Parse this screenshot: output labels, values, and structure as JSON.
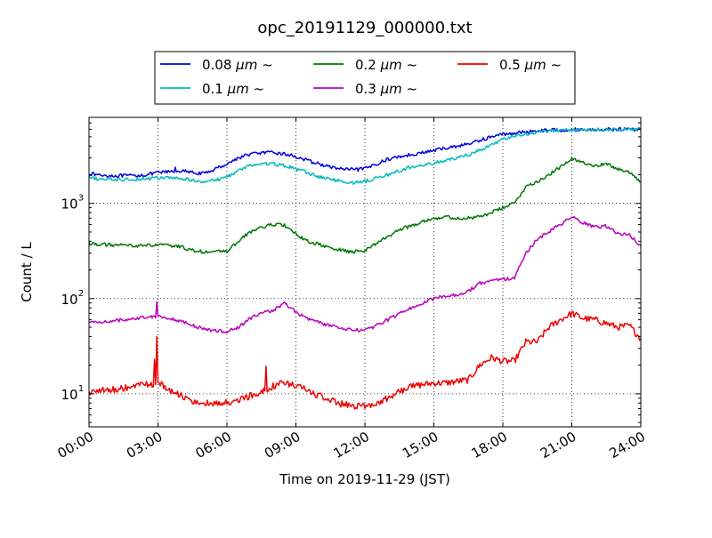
{
  "chart_data": {
    "type": "line",
    "title": "opc_20191129_000000.txt",
    "xlabel": "Time on 2019-11-29 (JST)",
    "ylabel": "Count / L",
    "xlim": [
      "00:00",
      "24:00"
    ],
    "ylim": [
      4.5,
      8000
    ],
    "yscale": "log",
    "grid": true,
    "legend_position": "top-center",
    "x_ticks": [
      "00:00",
      "03:00",
      "06:00",
      "09:00",
      "12:00",
      "15:00",
      "18:00",
      "21:00",
      "24:00"
    ],
    "y_ticks": [
      {
        "value": 10,
        "label": "10",
        "exp": "1"
      },
      {
        "value": 100,
        "label": "10",
        "exp": "2"
      },
      {
        "value": 1000,
        "label": "10",
        "exp": "3"
      }
    ],
    "x_hours": [
      0,
      0.5,
      1,
      1.5,
      2,
      2.5,
      3,
      3.5,
      4,
      4.5,
      5,
      5.5,
      6,
      6.5,
      7,
      7.5,
      8,
      8.5,
      9,
      9.5,
      10,
      10.5,
      11,
      11.5,
      12,
      12.5,
      13,
      13.5,
      14,
      14.5,
      15,
      15.5,
      16,
      16.5,
      17,
      17.5,
      18,
      18.5,
      19,
      19.5,
      20,
      20.5,
      21,
      21.5,
      22,
      22.5,
      23,
      23.5,
      24
    ],
    "series": [
      {
        "name": "0.08",
        "unit": "μm",
        "suffix": "~",
        "color": "#0000dd",
        "values": [
          2050,
          1980,
          1950,
          1950,
          1950,
          2000,
          2100,
          2150,
          2200,
          2100,
          2050,
          2300,
          2600,
          3000,
          3300,
          3400,
          3400,
          3300,
          3100,
          2800,
          2600,
          2400,
          2300,
          2250,
          2300,
          2600,
          2900,
          3100,
          3250,
          3400,
          3600,
          3800,
          4000,
          4200,
          4600,
          5000,
          5300,
          5500,
          5600,
          5800,
          5900,
          5900,
          5950,
          5950,
          5950,
          6000,
          6000,
          6000,
          6000
        ]
      },
      {
        "name": "0.1",
        "unit": "μm",
        "suffix": "~",
        "color": "#00bbbb",
        "values": [
          1850,
          1800,
          1780,
          1780,
          1800,
          1820,
          1850,
          1850,
          1820,
          1750,
          1700,
          1750,
          1900,
          2200,
          2500,
          2600,
          2600,
          2500,
          2300,
          2100,
          1900,
          1800,
          1700,
          1650,
          1700,
          1850,
          2000,
          2200,
          2400,
          2500,
          2650,
          2800,
          3000,
          3250,
          3600,
          4100,
          4700,
          5100,
          5300,
          5600,
          5800,
          5850,
          5900,
          5900,
          5900,
          5950,
          5950,
          5950,
          5950
        ]
      },
      {
        "name": "0.2",
        "unit": "μm",
        "suffix": "~",
        "color": "#007700",
        "values": [
          380,
          370,
          365,
          362,
          360,
          362,
          365,
          360,
          350,
          320,
          310,
          310,
          315,
          400,
          500,
          560,
          600,
          590,
          470,
          400,
          370,
          340,
          320,
          310,
          320,
          380,
          450,
          530,
          580,
          650,
          700,
          720,
          700,
          700,
          720,
          800,
          900,
          1000,
          1500,
          1700,
          2000,
          2400,
          2900,
          2700,
          2500,
          2600,
          2300,
          2100,
          1700
        ]
      },
      {
        "name": "0.3",
        "unit": "μm",
        "suffix": "~",
        "color": "#bb00bb",
        "values": [
          56,
          57,
          58,
          60,
          62,
          64,
          66,
          62,
          58,
          52,
          48,
          46,
          45,
          50,
          62,
          70,
          75,
          90,
          72,
          62,
          56,
          52,
          48,
          47,
          46,
          52,
          60,
          70,
          80,
          90,
          100,
          105,
          110,
          120,
          145,
          155,
          160,
          165,
          300,
          420,
          500,
          600,
          720,
          620,
          560,
          580,
          480,
          470,
          350
        ]
      },
      {
        "name": "0.5",
        "unit": "μm",
        "suffix": "~",
        "color": "#ee0000",
        "values": [
          10.5,
          10.8,
          11,
          11.5,
          12,
          12.5,
          13,
          11,
          9.5,
          8.5,
          8,
          7.8,
          8,
          8.5,
          9.5,
          10.5,
          12,
          13,
          12,
          11,
          9.5,
          8.5,
          7.8,
          7.5,
          7.5,
          8,
          9,
          10.5,
          12,
          12.5,
          13,
          13,
          13.5,
          14,
          20,
          24,
          22,
          22,
          35,
          35,
          50,
          60,
          70,
          62,
          60,
          55,
          50,
          52,
          38
        ]
      }
    ],
    "spikes": [
      {
        "series": 4,
        "x": 2.85,
        "value": 23
      },
      {
        "series": 4,
        "x": 2.95,
        "value": 40
      },
      {
        "series": 4,
        "x": 7.7,
        "value": 19.5
      },
      {
        "series": 3,
        "x": 2.95,
        "value": 92
      },
      {
        "series": 0,
        "x": 3.75,
        "value": 2400
      }
    ]
  }
}
